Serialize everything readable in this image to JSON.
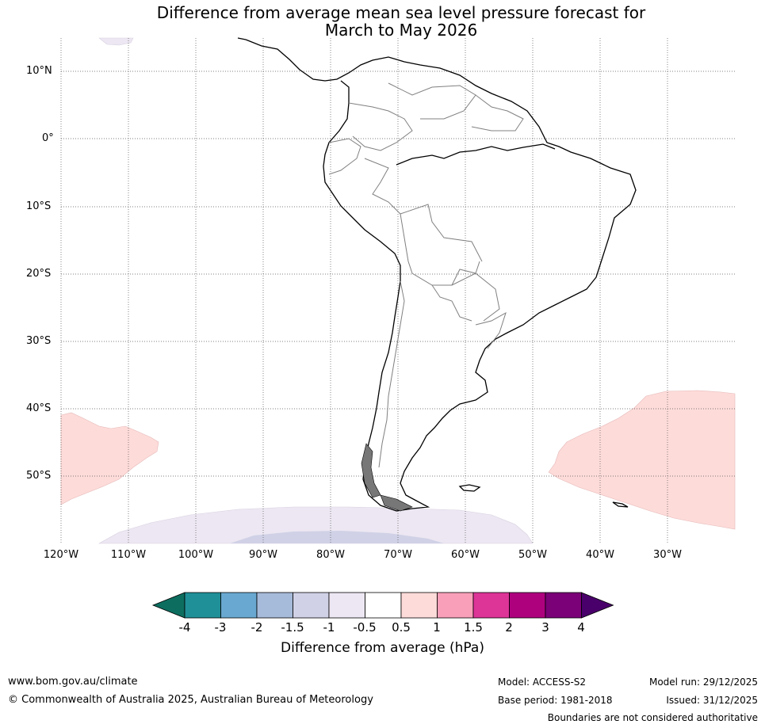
{
  "title_line1": "Difference from average mean sea level pressure forecast for",
  "title_line2": "March to May 2026",
  "lat_labels": [
    "10°N",
    "0°",
    "10°S",
    "20°S",
    "30°S",
    "40°S",
    "50°S"
  ],
  "lon_labels": [
    "120°W",
    "110°W",
    "100°W",
    "90°W",
    "80°W",
    "70°W",
    "60°W",
    "50°W",
    "40°W",
    "30°W"
  ],
  "colorbar": {
    "title": "Difference from average (hPa)",
    "tick_labels": [
      "-4",
      "-3",
      "-2",
      "-1.5",
      "-1",
      "-0.5",
      "0.5",
      "1",
      "1.5",
      "2",
      "3",
      "4"
    ],
    "colors": [
      "#0d6e5f",
      "#1f9098",
      "#69a9d1",
      "#a6bad9",
      "#d0d1e6",
      "#ece7f2",
      "#ffffff",
      "#fddbd9",
      "#f99fba",
      "#dd3497",
      "#ae017e",
      "#7a0177",
      "#49006a"
    ]
  },
  "footer": {
    "url": "www.bom.gov.au/climate",
    "copyright": "© Commonwealth of Australia 2025, Australian Bureau of Meteorology",
    "model": "Model: ACCESS-S2",
    "base_period": "Base period: 1981-2018",
    "model_run": "Model run: 29/12/2025",
    "issued": "Issued: 31/12/2025",
    "boundaries_note": "Boundaries are not considered authoritative"
  }
}
